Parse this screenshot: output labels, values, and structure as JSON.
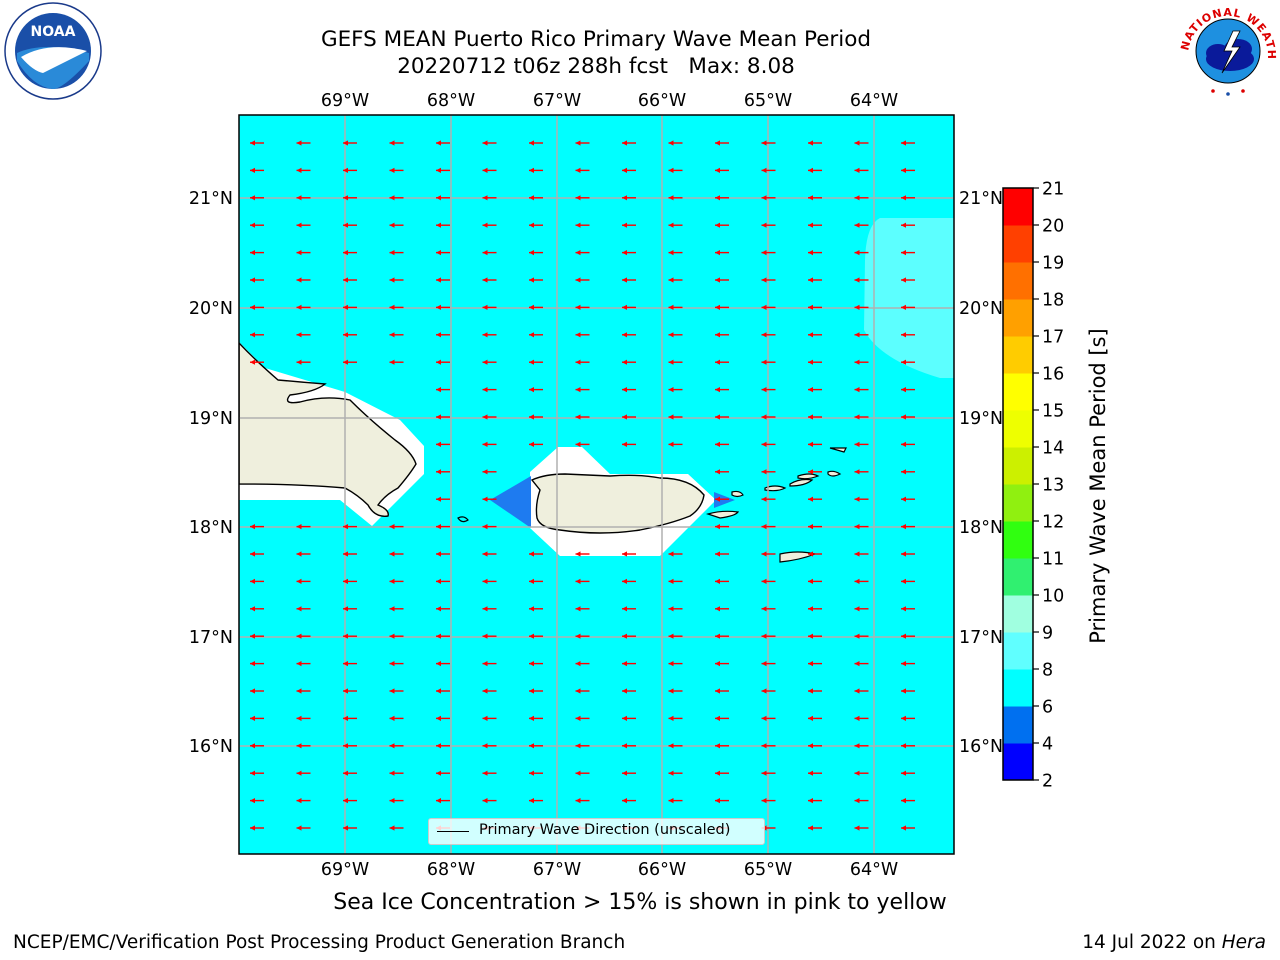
{
  "title": {
    "line1": "GEFS MEAN Puerto Rico Primary Wave Mean Period",
    "line2": "20220712 t06z 288h fcst   Max: 8.08"
  },
  "logos": {
    "left": "noaa-logo",
    "left_text": "NOAA",
    "right": "national-weather-service-logo",
    "right_text": "NATIONAL WEATHER SERVICE"
  },
  "map": {
    "lon_range": [
      -70.0,
      -63.25
    ],
    "lat_range": [
      15.0,
      21.75
    ],
    "lon_ticks": [
      "69°W",
      "68°W",
      "67°W",
      "66°W",
      "65°W",
      "64°W"
    ],
    "lat_ticks": [
      "16°N",
      "17°N",
      "18°N",
      "19°N",
      "20°N",
      "21°N"
    ],
    "gridlines": true,
    "background_color": "#00ffff",
    "arrow_color": "#ff0000",
    "arrow_direction": "westward",
    "legend_label": "Primary Wave Direction (unscaled)",
    "legend_placement": "lower-center"
  },
  "colorbar": {
    "label": "Primary Wave Mean Period [s]",
    "ticks": [
      "2",
      "4",
      "6",
      "8",
      "9",
      "10",
      "11",
      "12",
      "13",
      "14",
      "15",
      "16",
      "17",
      "18",
      "19",
      "20",
      "21"
    ],
    "colors": [
      "#0000ff",
      "#0070f0",
      "#00ffff",
      "#60ffff",
      "#a0ffe0",
      "#30f070",
      "#30ff10",
      "#90f010",
      "#ccf000",
      "#eeff00",
      "#ffff00",
      "#ffcc00",
      "#ffa000",
      "#ff7000",
      "#ff4000",
      "#ff0000"
    ]
  },
  "ice_note": "Sea Ice Concentration > 15% is shown in pink to yellow",
  "footer": {
    "left": "NCEP/EMC/Verification Post Processing Product Generation Branch",
    "right_date": "14 Jul 2022 on ",
    "right_host": "Hera"
  }
}
